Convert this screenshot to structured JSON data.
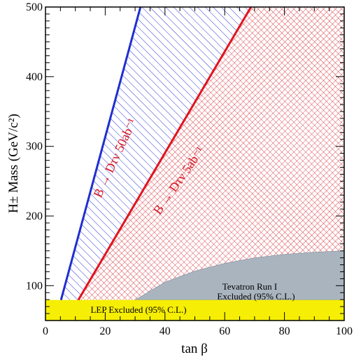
{
  "chart_data": {
    "type": "area",
    "xlabel": "tan β",
    "ylabel": "H± Mass (GeV/c²)",
    "xlim": [
      0,
      100
    ],
    "ylim": [
      50,
      500
    ],
    "xticks": [
      0,
      20,
      40,
      60,
      80,
      100
    ],
    "yticks": [
      100,
      200,
      300,
      400,
      500
    ],
    "grid": false,
    "series": [
      {
        "name": "B → Dτν 50ab⁻¹",
        "color": "#1f2fd0",
        "x": [
          5.2,
          31.8
        ],
        "y": [
          79.5,
          500
        ]
      },
      {
        "name": "B → Dτν 5ab⁻¹",
        "color": "#e0141e",
        "x": [
          11.0,
          68.8
        ],
        "y": [
          79.5,
          500
        ]
      },
      {
        "name": "Tevatron Run I Excluded (95% C.L.)",
        "color": "#a9b4bf",
        "x": [
          30,
          40,
          50,
          60,
          70,
          80,
          90,
          100
        ],
        "y": [
          79.5,
          105,
          121,
          132,
          140,
          145,
          148,
          150
        ]
      },
      {
        "name": "LEP Excluded (95% C.L.)",
        "color": "#f6ee04",
        "x": [
          0,
          100
        ],
        "y": [
          79.5,
          79.5
        ]
      }
    ],
    "annotations": [
      {
        "text": "B → Dτν 50ab⁻¹",
        "color": "#d8141e"
      },
      {
        "text": "B → Dτν 5ab⁻¹",
        "color": "#d8141e"
      },
      {
        "text": "Tevatron Run I",
        "color": "#000000"
      },
      {
        "text": "Excluded (95% C.L.)",
        "color": "#000000"
      },
      {
        "text": "LEP Excluded (95% C.L.)",
        "color": "#000000"
      }
    ]
  }
}
